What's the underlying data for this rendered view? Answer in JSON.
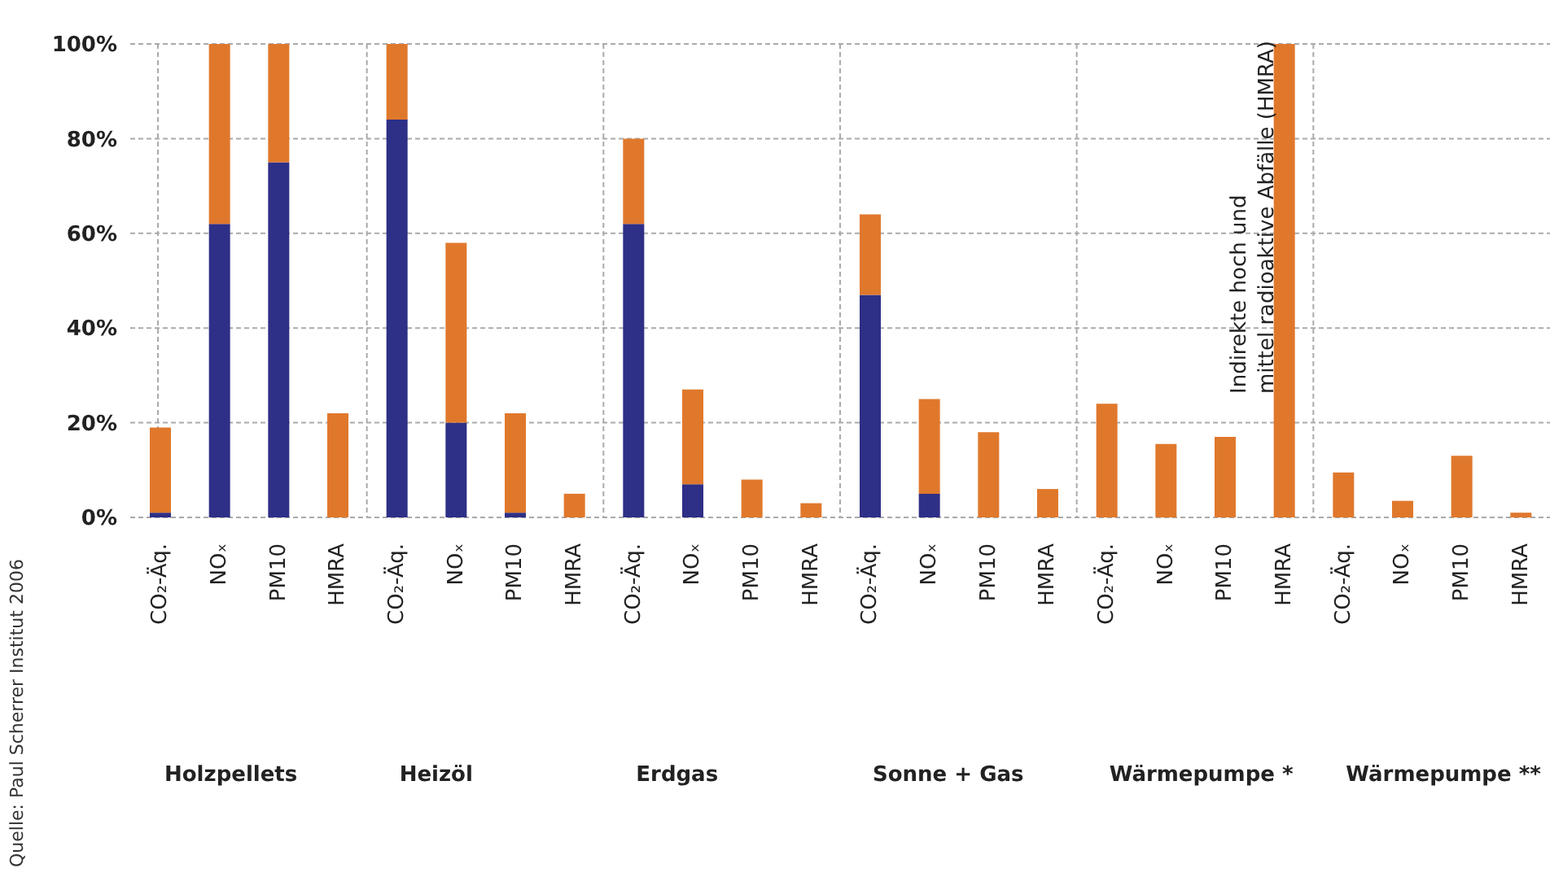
{
  "chart_data": {
    "type": "bar",
    "stacked": true,
    "categories": [
      "CO₂-Äq.",
      "NOₓ",
      "PM10",
      "HMRA",
      "CO₂-Äq.",
      "NOₓ",
      "PM10",
      "HMRA",
      "CO₂-Äq.",
      "NOₓ",
      "PM10",
      "HMRA",
      "CO₂-Äq.",
      "NOₓ",
      "PM10",
      "HMRA",
      "CO₂-Äq.",
      "NOₓ",
      "PM10",
      "HMRA",
      "CO₂-Äq.",
      "NOₓ",
      "PM10",
      "HMRA"
    ],
    "series": [
      {
        "color": "#2e2f86",
        "values": [
          1,
          62,
          75,
          0,
          84,
          20,
          1,
          0,
          62,
          7,
          0,
          0,
          47,
          5,
          0,
          0,
          0,
          0,
          0,
          0,
          0,
          0,
          0,
          0
        ]
      },
      {
        "color": "#e0782c",
        "values": [
          18,
          38,
          25,
          22,
          16,
          38,
          21,
          5,
          18,
          20,
          8,
          3,
          17,
          20,
          18,
          6,
          24,
          15.5,
          17,
          100,
          9.5,
          3.5,
          13,
          1
        ]
      }
    ],
    "ylim": [
      0,
      100
    ],
    "yticks": [
      {
        "value": 0,
        "label": "0%"
      },
      {
        "value": 20,
        "label": "20%"
      },
      {
        "value": 40,
        "label": "40%"
      },
      {
        "value": 60,
        "label": "60%"
      },
      {
        "value": 80,
        "label": "80%"
      },
      {
        "value": 100,
        "label": "100%"
      }
    ],
    "grid": true,
    "annotations": [
      "Indirekte hoch und mittel radioaktive Abfälle (HMRA)",
      "Holzpellets",
      "Heizöl",
      "Erdgas",
      "Sonne + Gas",
      "Wärmepumpe *",
      "Wärmepumpe **",
      "Quelle: Paul Scherrer Institut 2006"
    ]
  }
}
